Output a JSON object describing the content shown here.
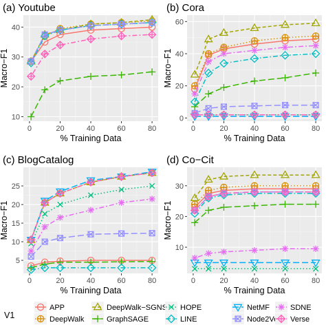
{
  "chart_data": [
    {
      "type": "line",
      "title": "(a) Youtube",
      "xlabel": "% Training Data",
      "ylabel": "Macro−F1",
      "x": [
        1,
        10,
        20,
        40,
        60,
        80
      ],
      "xticks": [
        0,
        20,
        40,
        60,
        80
      ],
      "yticks": [
        10,
        20,
        30,
        40
      ],
      "ylim": [
        8.5,
        44
      ],
      "series": [
        {
          "name": "APP",
          "values": [
            28.5,
            35,
            37.5,
            39,
            39.5,
            40
          ]
        },
        {
          "name": "DeepWalk",
          "values": [
            28.5,
            37,
            39.5,
            41,
            41.5,
            42
          ]
        },
        {
          "name": "DeepWalk−SGNS",
          "values": [
            28.5,
            37.5,
            39,
            41,
            41.5,
            42.5
          ]
        },
        {
          "name": "GraphSAGE",
          "values": [
            10,
            19,
            22,
            23.5,
            24,
            25
          ]
        },
        {
          "name": "HOPE",
          "values": [
            null,
            null,
            null,
            null,
            null,
            null
          ]
        },
        {
          "name": "LINE",
          "values": [
            28,
            37,
            39,
            40.5,
            41,
            41.5
          ]
        },
        {
          "name": "NetMF",
          "values": [
            null,
            null,
            null,
            null,
            null,
            null
          ]
        },
        {
          "name": "Node2Vec",
          "values": [
            28.5,
            37.5,
            39,
            40.5,
            41,
            41.5
          ]
        },
        {
          "name": "SDNE",
          "values": [
            null,
            null,
            null,
            null,
            null,
            null
          ]
        },
        {
          "name": "Verse",
          "values": [
            23.5,
            31,
            34,
            36,
            37,
            37.5
          ]
        }
      ]
    },
    {
      "type": "line",
      "title": "(b) Cora",
      "xlabel": "% Training Data",
      "ylabel": "Macro−F1",
      "x": [
        1,
        10,
        20,
        40,
        60,
        80
      ],
      "xticks": [
        0,
        20,
        40,
        60,
        80
      ],
      "yticks": [
        0,
        20,
        40,
        60
      ],
      "ylim": [
        -2,
        64
      ],
      "series": [
        {
          "name": "APP",
          "values": [
            18,
            39,
            43,
            46,
            48,
            49
          ]
        },
        {
          "name": "DeepWalk",
          "values": [
            20,
            40,
            44,
            48,
            50,
            51
          ]
        },
        {
          "name": "DeepWalk−SGNS",
          "values": [
            27,
            49,
            53,
            56,
            58,
            59
          ]
        },
        {
          "name": "GraphSAGE",
          "values": [
            7,
            15,
            19,
            23,
            25,
            28
          ]
        },
        {
          "name": "HOPE",
          "values": [
            2,
            2,
            2,
            2,
            2,
            2
          ]
        },
        {
          "name": "LINE",
          "values": [
            10,
            28,
            34,
            37,
            39,
            40
          ]
        },
        {
          "name": "NetMF",
          "values": [
            1,
            1,
            1,
            1,
            1,
            1
          ]
        },
        {
          "name": "Node2Vec",
          "values": [
            3,
            6,
            7,
            7.5,
            8,
            8
          ]
        },
        {
          "name": "SDNE",
          "values": [
            15,
            35,
            40,
            42,
            44,
            45
          ]
        },
        {
          "name": "Verse",
          "values": [
            2,
            2,
            2,
            2,
            2,
            2
          ]
        }
      ]
    },
    {
      "type": "line",
      "title": "(c) BlogCatalog",
      "xlabel": "% Training Data",
      "ylabel": "Macro−F1",
      "x": [
        1,
        10,
        20,
        40,
        60,
        80
      ],
      "xticks": [
        0,
        20,
        40,
        60,
        80
      ],
      "yticks": [
        5,
        10,
        15,
        20,
        25
      ],
      "ylim": [
        1.5,
        30
      ],
      "series": [
        {
          "name": "APP",
          "values": [
            3.5,
            4.5,
            4.8,
            5,
            5,
            5
          ]
        },
        {
          "name": "DeepWalk",
          "values": [
            10.5,
            20.5,
            23,
            26,
            27.5,
            28.5
          ]
        },
        {
          "name": "DeepWalk−SGNS",
          "values": [
            10.5,
            20.5,
            23,
            26,
            27.5,
            28.5
          ]
        },
        {
          "name": "GraphSAGE",
          "values": [
            3,
            4,
            4.5,
            4.5,
            4.6,
            4.7
          ]
        },
        {
          "name": "HOPE",
          "values": [
            9.5,
            17.5,
            20,
            22.5,
            24,
            25
          ]
        },
        {
          "name": "LINE",
          "values": [
            2.5,
            3,
            3,
            3,
            3,
            3
          ]
        },
        {
          "name": "NetMF",
          "values": [
            10.5,
            21,
            23.5,
            26.5,
            27.5,
            28.8
          ]
        },
        {
          "name": "Node2Vec",
          "values": [
            6,
            10,
            11,
            12,
            12.2,
            12.3
          ]
        },
        {
          "name": "SDNE",
          "values": [
            7.5,
            14,
            16.5,
            18.5,
            20.5,
            21.5
          ]
        },
        {
          "name": "Verse",
          "values": [
            10.5,
            20.5,
            23,
            26,
            27.5,
            28.5
          ]
        }
      ]
    },
    {
      "type": "line",
      "title": "(d) Co−Cit",
      "xlabel": "% Training Data",
      "ylabel": "Macro−F1",
      "x": [
        1,
        10,
        20,
        40,
        60,
        80
      ],
      "xticks": [
        0,
        20,
        40,
        60,
        80
      ],
      "yticks": [
        10,
        20,
        30
      ],
      "ylim": [
        1.5,
        36
      ],
      "series": [
        {
          "name": "APP",
          "values": [
            23,
            27.5,
            28.5,
            29,
            29,
            29
          ]
        },
        {
          "name": "DeepWalk",
          "values": [
            24,
            28.5,
            29.5,
            30,
            30,
            30
          ]
        },
        {
          "name": "DeepWalk−SGNS",
          "values": [
            26,
            32,
            33,
            33.5,
            33.5,
            33.5
          ]
        },
        {
          "name": "GraphSAGE",
          "values": [
            18,
            22,
            23,
            23.5,
            24,
            24
          ]
        },
        {
          "name": "HOPE",
          "values": [
            3,
            3,
            3,
            3,
            3,
            3
          ]
        },
        {
          "name": "LINE",
          "values": [
            21,
            26,
            27,
            27.5,
            27.5,
            27.5
          ]
        },
        {
          "name": "NetMF",
          "values": [
            5,
            5,
            5,
            5,
            5,
            5
          ]
        },
        {
          "name": "Node2Vec",
          "values": [
            22,
            26.5,
            27.5,
            28,
            28,
            28
          ]
        },
        {
          "name": "SDNE",
          "values": [
            6.5,
            8,
            8.5,
            9,
            9.5,
            9.5
          ]
        },
        {
          "name": "Verse",
          "values": [
            22,
            26.5,
            27.5,
            28,
            28,
            28
          ]
        }
      ]
    }
  ],
  "legend": {
    "title": "V1",
    "position": "bottom",
    "entries": [
      {
        "name": "APP",
        "color": "#F8766D",
        "marker": "circle",
        "dash": "solid"
      },
      {
        "name": "DeepWalk",
        "color": "#D89000",
        "marker": "circle-plus",
        "dash": "dotted"
      },
      {
        "name": "DeepWalk−SGNS",
        "color": "#A3A500",
        "marker": "triangle",
        "dash": "dashed"
      },
      {
        "name": "GraphSAGE",
        "color": "#39B600",
        "marker": "plus",
        "dash": "longdash"
      },
      {
        "name": "HOPE",
        "color": "#00BF7D",
        "marker": "cross",
        "dash": "dotted"
      },
      {
        "name": "LINE",
        "color": "#00BFC4",
        "marker": "diamond",
        "dash": "dashdot"
      },
      {
        "name": "NetMF",
        "color": "#00B0F6",
        "marker": "triangle-down",
        "dash": "longdash"
      },
      {
        "name": "Node2Vec",
        "color": "#9590FF",
        "marker": "square-cross",
        "dash": "longdash"
      },
      {
        "name": "SDNE",
        "color": "#E76BF3",
        "marker": "asterisk",
        "dash": "dotdash"
      },
      {
        "name": "Verse",
        "color": "#FF62BC",
        "marker": "diamond-plus",
        "dash": "dotdash"
      }
    ]
  }
}
